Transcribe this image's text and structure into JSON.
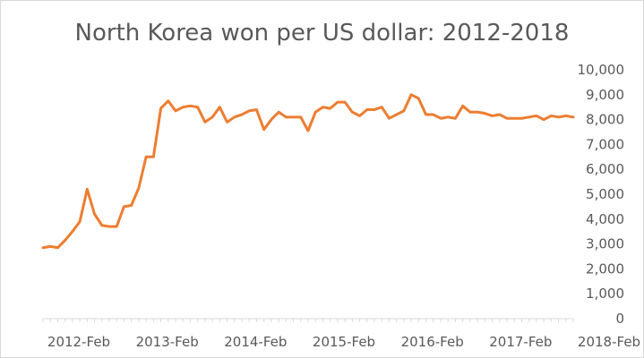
{
  "chart_data": {
    "type": "line",
    "title": "North Korea won per US dollar: 2012-2018",
    "xlabel": "",
    "ylabel": "",
    "ylim": [
      0,
      10000
    ],
    "y_ticks": [
      "0",
      "1,000",
      "2,000",
      "3,000",
      "4,000",
      "5,000",
      "6,000",
      "7,000",
      "8,000",
      "9,000",
      "10,000"
    ],
    "x_tick_labels": [
      "2012-Feb",
      "2013-Feb",
      "2014-Feb",
      "2015-Feb",
      "2016-Feb",
      "2017-Feb",
      "2018-Feb"
    ],
    "x_tick_index": [
      0,
      12,
      24,
      36,
      48,
      60,
      72
    ],
    "grid": false,
    "legend": "none",
    "color": "#ED7D31",
    "x": [
      "2012-Feb",
      "2012-Mar",
      "2012-Apr",
      "2012-May",
      "2012-Jun",
      "2012-Jul",
      "2012-Aug",
      "2012-Sep",
      "2012-Oct",
      "2012-Nov",
      "2012-Dec",
      "2013-Jan",
      "2013-Feb",
      "2013-Mar",
      "2013-Apr",
      "2013-May",
      "2013-Jun",
      "2013-Jul",
      "2013-Aug",
      "2013-Sep",
      "2013-Oct",
      "2013-Nov",
      "2013-Dec",
      "2014-Jan",
      "2014-Feb",
      "2014-Mar",
      "2014-Apr",
      "2014-May",
      "2014-Jun",
      "2014-Jul",
      "2014-Aug",
      "2014-Sep",
      "2014-Oct",
      "2014-Nov",
      "2014-Dec",
      "2015-Jan",
      "2015-Feb",
      "2015-Mar",
      "2015-Apr",
      "2015-May",
      "2015-Jun",
      "2015-Jul",
      "2015-Aug",
      "2015-Sep",
      "2015-Oct",
      "2015-Nov",
      "2015-Dec",
      "2016-Jan",
      "2016-Feb",
      "2016-Mar",
      "2016-Apr",
      "2016-May",
      "2016-Jun",
      "2016-Jul",
      "2016-Aug",
      "2016-Sep",
      "2016-Oct",
      "2016-Nov",
      "2016-Dec",
      "2017-Jan",
      "2017-Feb",
      "2017-Mar",
      "2017-Apr",
      "2017-May",
      "2017-Jun",
      "2017-Jul",
      "2017-Aug",
      "2017-Sep",
      "2017-Oct",
      "2017-Nov",
      "2017-Dec",
      "2018-Jan",
      "2018-Feb"
    ],
    "values": [
      2850,
      2900,
      2850,
      3150,
      3500,
      3900,
      5200,
      4200,
      3750,
      3700,
      3700,
      4500,
      4550,
      5250,
      6500,
      6500,
      8450,
      8750,
      8350,
      8500,
      8550,
      8500,
      7900,
      8100,
      8500,
      7900,
      8100,
      8200,
      8350,
      8400,
      7600,
      8000,
      8300,
      8100,
      8100,
      8100,
      7550,
      8300,
      8500,
      8450,
      8700,
      8700,
      8300,
      8150,
      8400,
      8400,
      8500,
      8050,
      8200,
      8350,
      9000,
      8850,
      8200,
      8200,
      8050,
      8100,
      8050,
      8550,
      8300,
      8300,
      8250,
      8150,
      8200,
      8050,
      8050,
      8050,
      8100,
      8150,
      8000,
      8150,
      8100,
      8150,
      8100
    ]
  }
}
